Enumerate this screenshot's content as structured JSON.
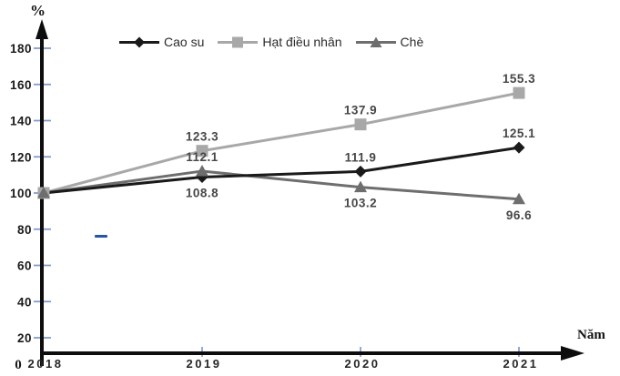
{
  "chart_data": {
    "type": "line",
    "title": "",
    "categories": [
      "2018",
      "2019",
      "2020",
      "2021"
    ],
    "series": [
      {
        "name": "Cao su",
        "marker": "diamond",
        "color": "#1a1a1a",
        "values": [
          100,
          108.8,
          111.9,
          125.1
        ],
        "data_labels": [
          "",
          "108.8",
          "111.9",
          "125.1"
        ],
        "label_positions": [
          null,
          "below",
          "above",
          "above"
        ]
      },
      {
        "name": "Hạt điều nhân",
        "marker": "square",
        "color": "#a8a8a8",
        "values": [
          100,
          123.3,
          137.9,
          155.3
        ],
        "data_labels": [
          "",
          "123.3",
          "137.9",
          "155.3"
        ],
        "label_positions": [
          null,
          "above",
          "above",
          "above"
        ]
      },
      {
        "name": "Chè",
        "marker": "triangle",
        "color": "#6e6e6e",
        "values": [
          100,
          112.1,
          103.2,
          96.6
        ],
        "data_labels": [
          "",
          "112.1",
          "103.2",
          "96.6"
        ],
        "label_positions": [
          null,
          "above",
          "below",
          "below"
        ]
      }
    ],
    "y_axis": {
      "title": "%",
      "ticks": [
        20,
        40,
        60,
        80,
        100,
        120,
        140,
        160,
        180
      ],
      "origin_label": "0",
      "range": [
        0,
        200
      ]
    },
    "x_axis": {
      "title": "Năm",
      "tick_years": [
        "2019",
        "2020",
        "2021"
      ]
    },
    "legend_position": "top",
    "grid": false,
    "colors": {
      "axis": "#0d0d0d",
      "tick_marks": "#7b9bd1",
      "tick_labels": "#1a1a1a",
      "year_labels": "#262626",
      "data_labels": "#474747",
      "stray_dash": "#2353b8"
    }
  }
}
